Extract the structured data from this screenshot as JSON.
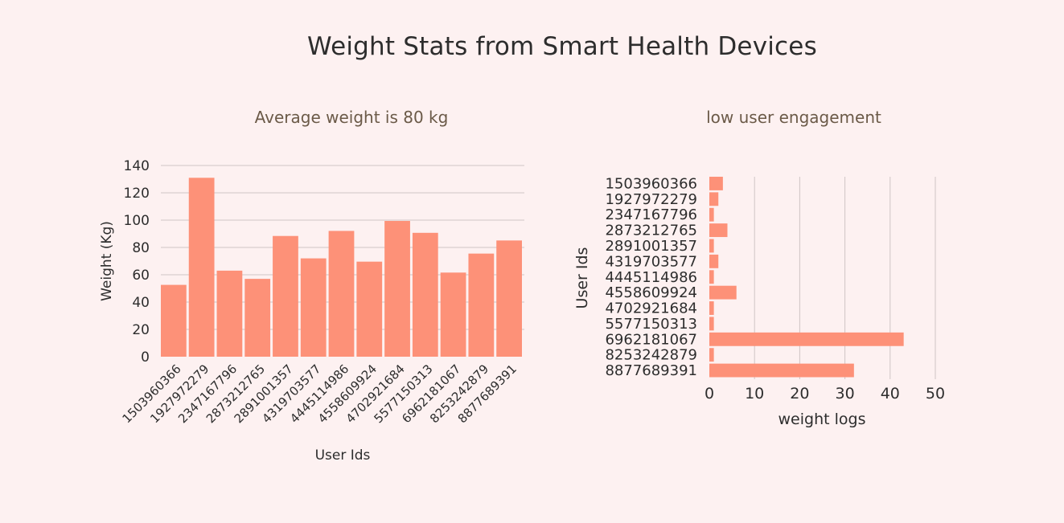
{
  "title": "Weight Stats from Smart Health Devices",
  "colors": {
    "bar": "#fd9178",
    "grid": "#cfc5c5",
    "background": "#fdf1f1",
    "text": "#2d2d2d",
    "subtitle": "#6b5a48"
  },
  "chart_data": [
    {
      "type": "bar",
      "title": "Average weight is 80 kg",
      "xlabel": "User Ids",
      "ylabel": "Weight (Kg)",
      "ylim": [
        0,
        140
      ],
      "yticks": [
        0,
        20,
        40,
        60,
        80,
        100,
        120,
        140
      ],
      "grid": true,
      "categories": [
        "1503960366",
        "1927972279",
        "2347167796",
        "2873212765",
        "2891001357",
        "4319703577",
        "4445114986",
        "4558609924",
        "4702921684",
        "5577150313",
        "6962181067",
        "8253242879",
        "8877689391"
      ],
      "values": [
        52.6,
        131.0,
        63.0,
        57.0,
        88.4,
        72.0,
        92.1,
        69.6,
        99.4,
        90.7,
        61.6,
        75.5,
        85.1
      ]
    },
    {
      "type": "bar",
      "orientation": "horizontal",
      "title": "low user engagement",
      "xlabel": "weight logs",
      "ylabel": "User Ids",
      "xlim": [
        0,
        50
      ],
      "xticks": [
        0,
        10,
        20,
        30,
        40,
        50
      ],
      "grid": true,
      "categories": [
        "1503960366",
        "1927972279",
        "2347167796",
        "2873212765",
        "2891001357",
        "4319703577",
        "4445114986",
        "4558609924",
        "4702921684",
        "5577150313",
        "6962181067",
        "8253242879",
        "8877689391"
      ],
      "values": [
        3,
        2,
        1,
        4,
        1,
        2,
        1,
        6,
        1,
        1,
        43,
        1,
        32
      ]
    }
  ]
}
